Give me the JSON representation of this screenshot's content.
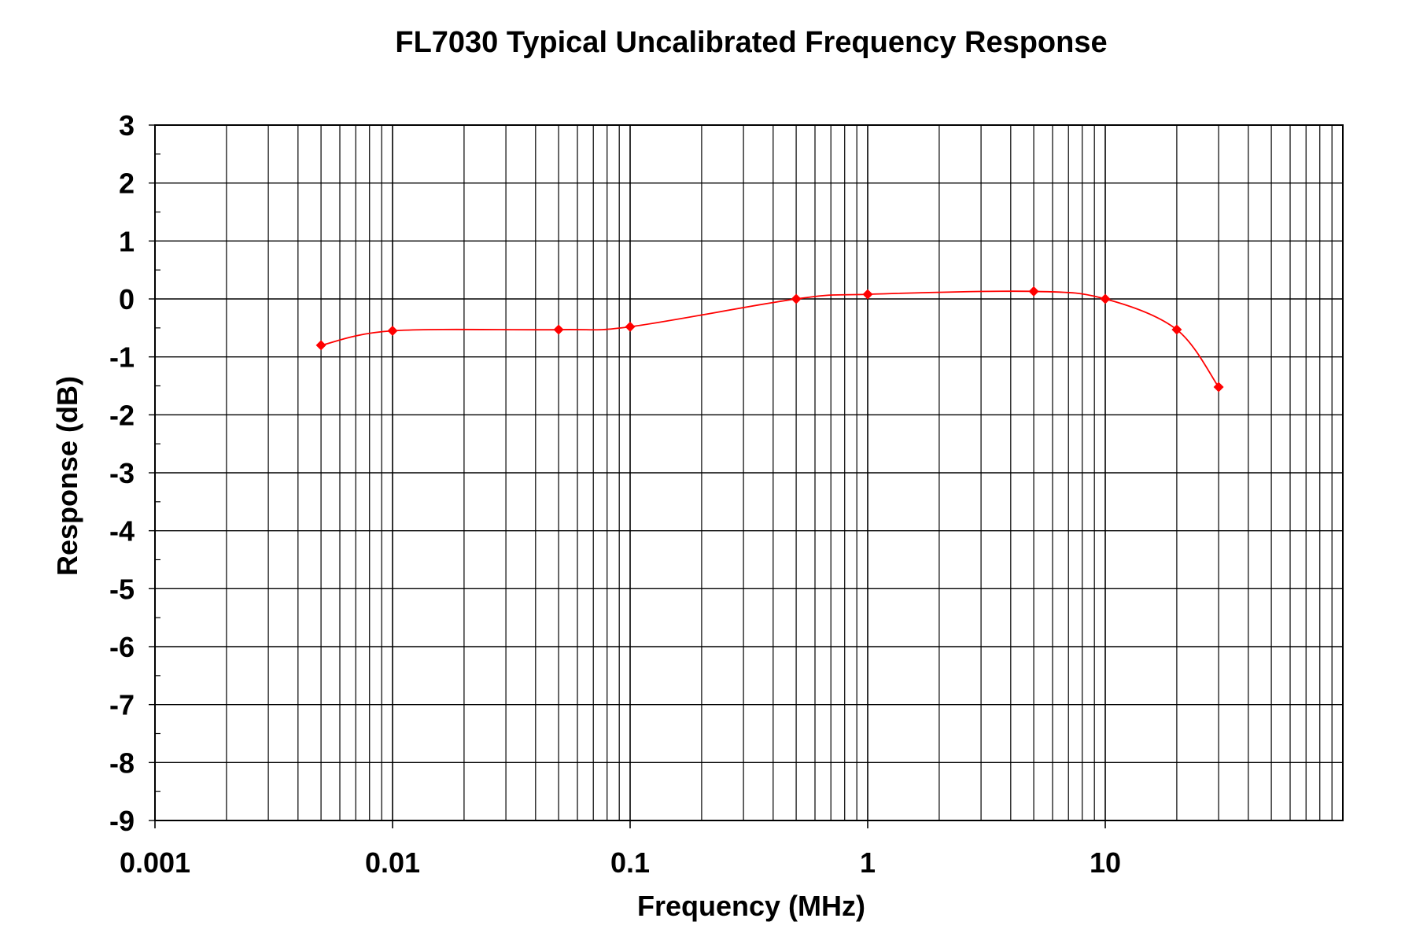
{
  "chart_data": {
    "type": "line",
    "title": "FL7030 Typical Uncalibrated Frequency Response",
    "xlabel": "Frequency (MHz)",
    "ylabel": "Response (dB)",
    "x_scale": "log",
    "xlim": [
      0.001,
      100
    ],
    "ylim": [
      -9,
      3
    ],
    "grid": true,
    "x_tick_labels": [
      "0.001",
      "0.01",
      "0.1",
      "1",
      "10"
    ],
    "y_tick_labels": [
      "3",
      "2",
      "1",
      "0",
      "-1",
      "-2",
      "-3",
      "-4",
      "-5",
      "-6",
      "-7",
      "-8",
      "-9"
    ],
    "series": [
      {
        "color": "#ff0000",
        "marker": "diamond",
        "x": [
          0.005,
          0.01,
          0.05,
          0.1,
          0.5,
          1,
          5,
          10,
          20,
          30
        ],
        "y": [
          -0.8,
          -0.55,
          -0.53,
          -0.48,
          0.0,
          0.08,
          0.13,
          0.0,
          -0.53,
          -1.52
        ]
      }
    ]
  }
}
